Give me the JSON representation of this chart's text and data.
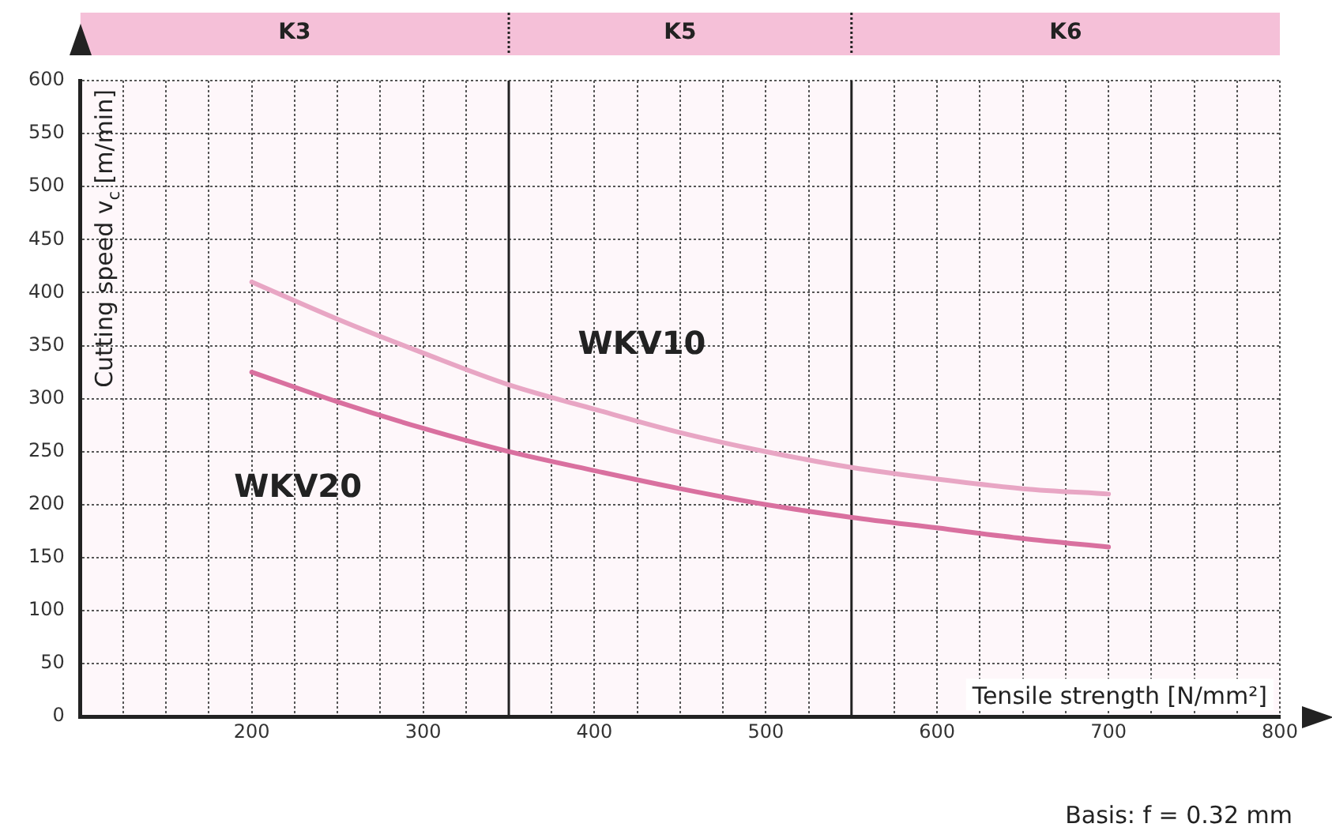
{
  "chart_data": {
    "type": "line",
    "xlabel": "Tensile strength [N/mm²]",
    "ylabel": "Cutting speed v$_{c}$ [m/min]",
    "x": [
      200,
      250,
      300,
      350,
      400,
      450,
      500,
      550,
      600,
      650,
      700
    ],
    "series": [
      {
        "name": "WKV10",
        "color": "#e8a6c4",
        "values": [
          410,
          375,
          343,
          313,
          290,
          268,
          250,
          235,
          224,
          215,
          210
        ]
      },
      {
        "name": "WKV20",
        "color": "#d9709f",
        "values": [
          325,
          297,
          272,
          250,
          232,
          215,
          200,
          188,
          178,
          168,
          160
        ]
      }
    ],
    "xlim": [
      100,
      800
    ],
    "ylim": [
      0,
      600
    ],
    "xticks": [
      {
        "value": 100,
        "label": null
      },
      {
        "value": 125,
        "label": null
      },
      {
        "value": 150,
        "label": null
      },
      {
        "value": 175,
        "label": null
      },
      200,
      {
        "value": 225,
        "label": null
      },
      {
        "value": 250,
        "label": null
      },
      {
        "value": 275,
        "label": null
      },
      300,
      {
        "value": 325,
        "label": null
      },
      {
        "value": 375,
        "label": null
      },
      400,
      {
        "value": 425,
        "label": null
      },
      {
        "value": 450,
        "label": null
      },
      {
        "value": 475,
        "label": null
      },
      500,
      {
        "value": 525,
        "label": null
      },
      {
        "value": 575,
        "label": null
      },
      600,
      {
        "value": 625,
        "label": null
      },
      {
        "value": 650,
        "label": null
      },
      {
        "value": 675,
        "label": null
      },
      700,
      {
        "value": 725,
        "label": null
      },
      {
        "value": 750,
        "label": null
      },
      {
        "value": 775,
        "label": null
      },
      800
    ],
    "yticks": [
      0,
      50,
      100,
      150,
      200,
      250,
      300,
      350,
      400,
      450,
      500,
      550,
      600
    ],
    "ref_lines": [
      {
        "axis": "x",
        "value": 350,
        "color": "#222222"
      },
      {
        "axis": "x",
        "value": 550,
        "color": "#222222"
      }
    ],
    "bands": [
      {
        "axis": "x",
        "from": 100,
        "to": 350,
        "label": "K3",
        "color": "#f5c0d8"
      },
      {
        "axis": "x",
        "from": 350,
        "to": 550,
        "label": "K5",
        "color": "#f5c0d8"
      },
      {
        "axis": "x",
        "from": 550,
        "to": 800,
        "label": "K6",
        "color": "#f5c0d8"
      }
    ],
    "grid": true,
    "legend": false,
    "marker": "none",
    "line_style": "solid",
    "annotations": [
      "Basis: f = 0.32 mm"
    ]
  }
}
